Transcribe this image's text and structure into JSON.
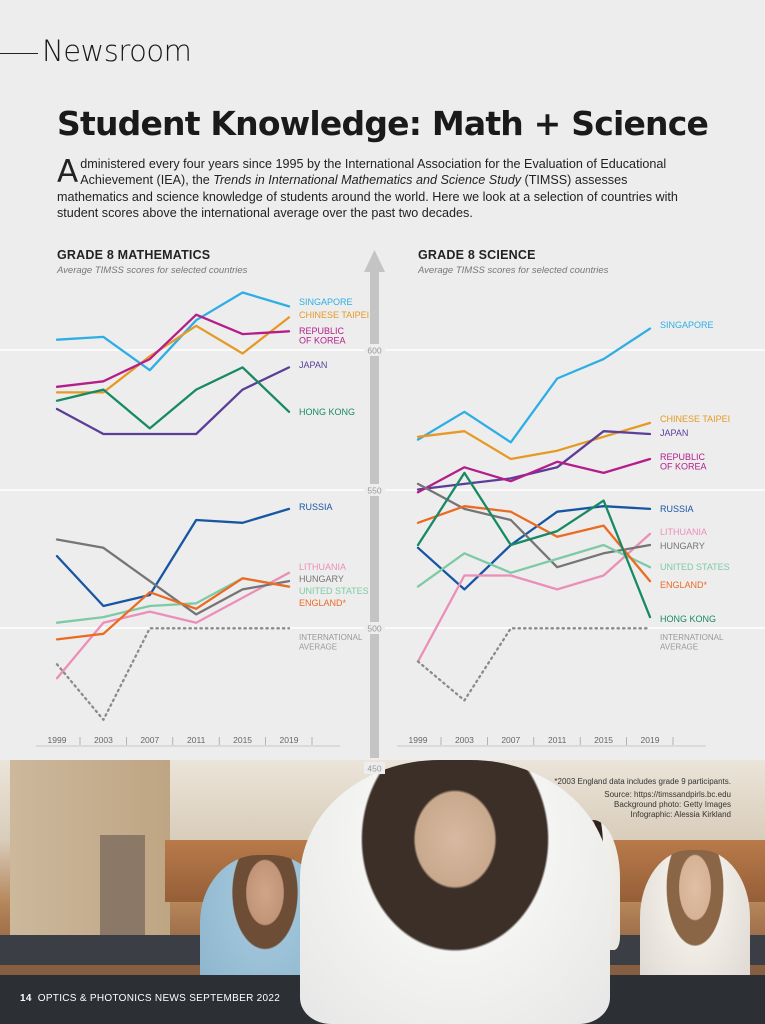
{
  "section": "Newsroom",
  "headline": "Student Knowledge: Math + Science",
  "intro": {
    "dropcap": "A",
    "before": "dministered every four years since 1995 by the International Association for the Evaluation of Educational Achievement (IEA), the ",
    "italic": "Trends in International Mathematics and Science Study",
    "after": " (TIMSS) assesses mathematics and science knowledge of students around the world. Here we look at a selection of countries with student scores above the international average over the past two decades."
  },
  "colors": {
    "singapore": "#2eaee4",
    "chinese_taipei": "#e59a26",
    "korea": "#b41d8a",
    "japan": "#5a3e97",
    "hong_kong": "#178a64",
    "russia": "#1756a3",
    "lithuania": "#ec8fb8",
    "hungary": "#757575",
    "united_states": "#7fcaa6",
    "england": "#ec6a22",
    "international_average": "#8b8b8b",
    "axis": "#c4c4c4"
  },
  "chart_data": [
    {
      "type": "line",
      "title": "GRADE 8 MATHEMATICS",
      "subtitle": "Average TIMSS scores for selected countries",
      "x": [
        "1999",
        "2003",
        "2007",
        "2011",
        "2015",
        "2019"
      ],
      "ylim": [
        450,
        630
      ],
      "yticks": [
        "600",
        "550",
        "500",
        "450"
      ],
      "series": [
        {
          "name": "SINGAPORE",
          "color": "singapore",
          "values": [
            604,
            605,
            593,
            611,
            621,
            616
          ]
        },
        {
          "name": "CHINESE TAIPEI",
          "color": "chinese_taipei",
          "values": [
            585,
            585,
            598,
            609,
            599,
            612
          ]
        },
        {
          "name": "REPUBLIC OF KOREA",
          "color": "korea",
          "values": [
            587,
            589,
            597,
            613,
            606,
            607
          ]
        },
        {
          "name": "JAPAN",
          "color": "japan",
          "values": [
            579,
            570,
            570,
            570,
            586,
            594
          ]
        },
        {
          "name": "HONG KONG",
          "color": "hong_kong",
          "values": [
            582,
            586,
            572,
            586,
            594,
            578
          ]
        },
        {
          "name": "RUSSIA",
          "color": "russia",
          "values": [
            526,
            508,
            512,
            539,
            538,
            543
          ]
        },
        {
          "name": "LITHUANIA",
          "color": "lithuania",
          "values": [
            482,
            502,
            506,
            502,
            511,
            520
          ]
        },
        {
          "name": "HUNGARY",
          "color": "hungary",
          "values": [
            532,
            529,
            517,
            505,
            514,
            517
          ]
        },
        {
          "name": "UNITED STATES",
          "color": "united_states",
          "values": [
            502,
            504,
            508,
            509,
            518,
            515
          ]
        },
        {
          "name": "ENGLAND*",
          "color": "england",
          "values": [
            496,
            498,
            513,
            507,
            518,
            515
          ]
        },
        {
          "name": "INTERNATIONAL AVERAGE",
          "color": "international_average",
          "values": [
            487,
            467,
            500,
            500,
            500,
            500
          ],
          "dashed": true
        }
      ]
    },
    {
      "type": "line",
      "title": "GRADE 8 SCIENCE",
      "subtitle": "Average TIMSS scores for selected countries",
      "x": [
        "1999",
        "2003",
        "2007",
        "2011",
        "2015",
        "2019"
      ],
      "ylim": [
        450,
        630
      ],
      "series": [
        {
          "name": "SINGAPORE",
          "color": "singapore",
          "values": [
            568,
            578,
            567,
            590,
            597,
            608
          ]
        },
        {
          "name": "CHINESE TAIPEI",
          "color": "chinese_taipei",
          "values": [
            569,
            571,
            561,
            564,
            569,
            574
          ]
        },
        {
          "name": "JAPAN",
          "color": "japan",
          "values": [
            550,
            552,
            554,
            558,
            571,
            570
          ]
        },
        {
          "name": "REPUBLIC OF KOREA",
          "color": "korea",
          "values": [
            549,
            558,
            553,
            560,
            556,
            561
          ]
        },
        {
          "name": "RUSSIA",
          "color": "russia",
          "values": [
            529,
            514,
            530,
            542,
            544,
            543
          ]
        },
        {
          "name": "LITHUANIA",
          "color": "lithuania",
          "values": [
            488,
            519,
            519,
            514,
            519,
            534
          ]
        },
        {
          "name": "HUNGARY",
          "color": "hungary",
          "values": [
            552,
            543,
            539,
            522,
            527,
            530
          ]
        },
        {
          "name": "UNITED STATES",
          "color": "united_states",
          "values": [
            515,
            527,
            520,
            525,
            530,
            522
          ]
        },
        {
          "name": "ENGLAND*",
          "color": "england",
          "values": [
            538,
            544,
            542,
            533,
            537,
            517
          ]
        },
        {
          "name": "HONG KONG",
          "color": "hong_kong",
          "values": [
            530,
            556,
            530,
            535,
            546,
            504
          ]
        },
        {
          "name": "INTERNATIONAL AVERAGE",
          "color": "international_average",
          "values": [
            488,
            474,
            500,
            500,
            500,
            500
          ],
          "dashed": true
        }
      ]
    }
  ],
  "footnote": "*2003 England data includes grade 9 participants.",
  "credits": {
    "source": "Source: https://timssandpirls.bc.edu",
    "photo": "Background photo: Getty Images",
    "infographic": "Infographic: Alessia Kirkland"
  },
  "footer": {
    "page": "14",
    "publication": "OPTICS & PHOTONICS NEWS  SEPTEMBER 2022"
  }
}
